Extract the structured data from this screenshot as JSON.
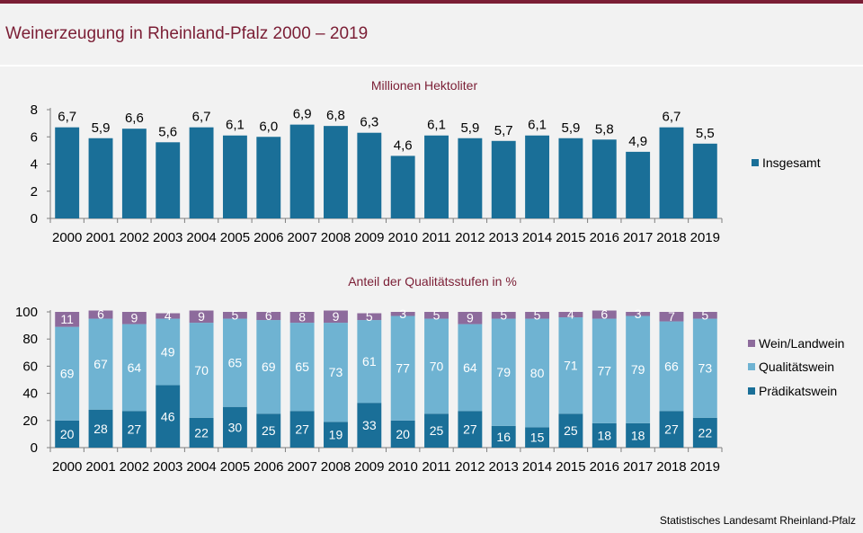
{
  "page": {
    "title": "Weinerzeugung in Rheinland-Pfalz 2000 – 2019",
    "source": "Statistisches Landesamt Rheinland-Pfalz"
  },
  "colors": {
    "brand": "#7b1e35",
    "insgesamt": "#1a6f98",
    "praedikatswein": "#1a6f98",
    "qualitaetswein": "#6fb3d2",
    "weinLandwein": "#8d6b9c"
  },
  "chart_data": [
    {
      "type": "bar",
      "title": "Millionen Hektoliter",
      "categories": [
        "2000",
        "2001",
        "2002",
        "2003",
        "2004",
        "2005",
        "2006",
        "2007",
        "2008",
        "2009",
        "2010",
        "2011",
        "2012",
        "2013",
        "2014",
        "2015",
        "2016",
        "2017",
        "2018",
        "2019"
      ],
      "series": [
        {
          "name": "Insgesamt",
          "values": [
            6.7,
            5.9,
            6.6,
            5.6,
            6.7,
            6.1,
            6.0,
            6.9,
            6.8,
            6.3,
            4.6,
            6.1,
            5.9,
            5.7,
            6.1,
            5.9,
            5.8,
            4.9,
            6.7,
            5.5
          ]
        }
      ],
      "data_labels": [
        "6,7",
        "5,9",
        "6,6",
        "5,6",
        "6,7",
        "6,1",
        "6,0",
        "6,9",
        "6,8",
        "6,3",
        "4,6",
        "6,1",
        "5,9",
        "5,7",
        "6,1",
        "5,9",
        "5,8",
        "4,9",
        "6,7",
        "5,5"
      ],
      "yticks": [
        0,
        2,
        4,
        6,
        8
      ],
      "ylim": [
        0,
        8
      ],
      "legend": "right"
    },
    {
      "type": "bar",
      "stacked": true,
      "title": "Anteil der Qualitätsstufen  in %",
      "categories": [
        "2000",
        "2001",
        "2002",
        "2003",
        "2004",
        "2005",
        "2006",
        "2007",
        "2008",
        "2009",
        "2010",
        "2011",
        "2012",
        "2013",
        "2014",
        "2015",
        "2016",
        "2017",
        "2018",
        "2019"
      ],
      "series": [
        {
          "name": "Prädikatswein",
          "values": [
            20,
            28,
            27,
            46,
            22,
            30,
            25,
            27,
            19,
            33,
            20,
            25,
            27,
            16,
            15,
            25,
            18,
            18,
            27,
            22
          ]
        },
        {
          "name": "Qualitätswein",
          "values": [
            69,
            67,
            64,
            49,
            70,
            65,
            69,
            65,
            73,
            61,
            77,
            70,
            64,
            79,
            80,
            71,
            77,
            79,
            66,
            73
          ]
        },
        {
          "name": "Wein/Landwein",
          "values": [
            11,
            6,
            9,
            4,
            9,
            5,
            6,
            8,
            9,
            5,
            3,
            5,
            9,
            5,
            5,
            4,
            6,
            3,
            7,
            5
          ]
        }
      ],
      "legend_order": [
        "Wein/Landwein",
        "Qualitätswein",
        "Prädikatswein"
      ],
      "yticks": [
        0,
        20,
        40,
        60,
        80,
        100
      ],
      "ylim": [
        0,
        100
      ],
      "legend": "right"
    }
  ]
}
